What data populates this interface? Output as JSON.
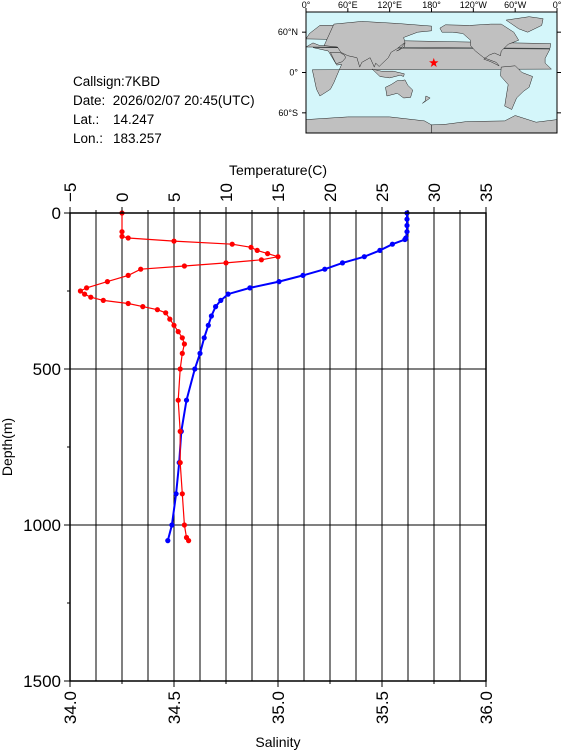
{
  "station": {
    "callsign_label": "Callsign:",
    "callsign": "7KBD",
    "date_label": "Date:",
    "date": "2026/02/07 20:45(UTC)",
    "lat_label": "Lat.:",
    "lat": "14.247",
    "lon_label": "Lon.:",
    "lon": "183.257"
  },
  "map": {
    "lon_ticks": [
      "0°",
      "60°E",
      "120°E",
      "180°",
      "120°W",
      "60°W",
      "0°"
    ],
    "lat_ticks": [
      "60°N",
      "0°",
      "60°S"
    ],
    "ocean_color": "#d4f6fa",
    "land_color": "#c0c0c0",
    "marker_color": "#ff0000",
    "marker": {
      "lon": 183.257,
      "lat": 14.247
    }
  },
  "chart_data": {
    "type": "line",
    "temperature_axis": {
      "label": "Temperature(C)",
      "range": [
        -5,
        35
      ],
      "ticks": [
        "−5",
        "0",
        "5",
        "10",
        "15",
        "20",
        "25",
        "30",
        "35"
      ]
    },
    "salinity_axis": {
      "label": "Salinity",
      "range": [
        34.0,
        36.0
      ],
      "ticks": [
        "34.0",
        "34.5",
        "35.0",
        "35.5",
        "36.0"
      ]
    },
    "depth_axis": {
      "label": "Depth(m)",
      "range": [
        0,
        1500
      ],
      "inverted": true,
      "ticks": [
        "0",
        "500",
        "1000",
        "1500"
      ]
    },
    "grid": true,
    "series": [
      {
        "color": "#0000ff",
        "x_axis": "temperature",
        "depth": [
          0,
          20,
          40,
          60,
          80,
          85,
          100,
          120,
          140,
          160,
          180,
          200,
          220,
          240,
          260,
          280,
          300,
          330,
          360,
          400,
          450,
          500,
          600,
          700,
          800,
          900,
          1000,
          1050
        ],
        "values": [
          27.4,
          27.4,
          27.4,
          27.4,
          27.3,
          27.2,
          26.0,
          24.8,
          23.3,
          21.2,
          19.5,
          17.4,
          15.1,
          12.3,
          10.2,
          9.5,
          9.0,
          8.6,
          8.3,
          7.9,
          7.5,
          7.0,
          6.2,
          5.7,
          5.5,
          5.2,
          4.8,
          4.4
        ]
      },
      {
        "color": "#ff0000",
        "x_axis": "salinity",
        "depth": [
          0,
          60,
          75,
          80,
          90,
          100,
          110,
          120,
          130,
          140,
          150,
          160,
          170,
          180,
          200,
          220,
          240,
          250,
          260,
          270,
          280,
          290,
          300,
          310,
          320,
          340,
          360,
          380,
          400,
          420,
          450,
          500,
          600,
          700,
          800,
          900,
          1000,
          1040,
          1050
        ],
        "values": [
          34.25,
          34.25,
          34.25,
          34.28,
          34.5,
          34.78,
          34.87,
          34.9,
          34.95,
          35.0,
          34.92,
          34.75,
          34.55,
          34.34,
          34.28,
          34.18,
          34.08,
          34.05,
          34.07,
          34.1,
          34.16,
          34.28,
          34.35,
          34.42,
          34.46,
          34.48,
          34.5,
          34.52,
          34.54,
          34.55,
          34.54,
          34.53,
          34.52,
          34.53,
          34.53,
          34.54,
          34.55,
          34.56,
          34.57
        ]
      }
    ]
  }
}
